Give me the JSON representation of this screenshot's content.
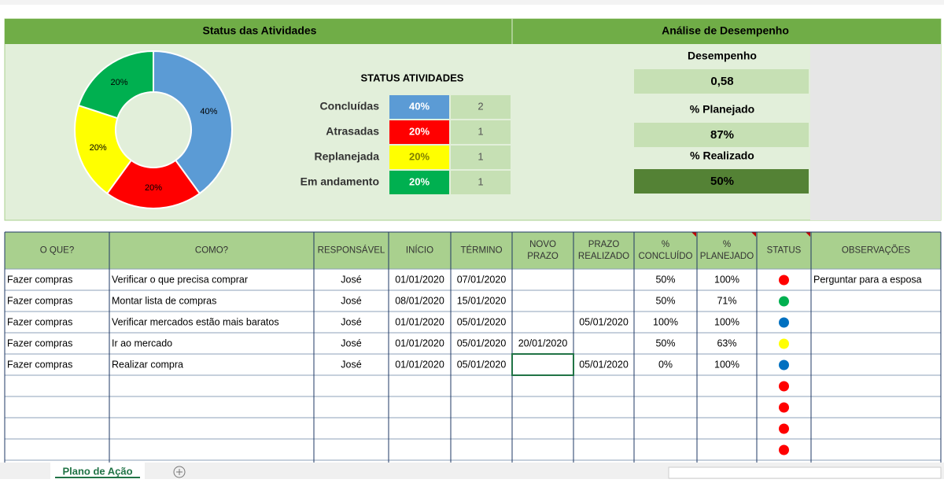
{
  "dashboard": {
    "left_title": "Status das Atividades",
    "right_title": "Análise de Desempenho",
    "donut": {
      "values": [
        40,
        20,
        20,
        20
      ],
      "labels": [
        "40%",
        "20%",
        "20%",
        "20%"
      ],
      "colors": [
        "#5b9bd5",
        "#ff0000",
        "#ffff00",
        "#00b050"
      ]
    },
    "status_table": {
      "title": "STATUS ATIVIDADES",
      "rows": [
        {
          "label": "Concluídas",
          "percent": "40%",
          "count": "2",
          "color": "#5b9bd5",
          "text": "#ffffff"
        },
        {
          "label": "Atrasadas",
          "percent": "20%",
          "count": "1",
          "color": "#ff0000",
          "text": "#ffffff"
        },
        {
          "label": "Replanejada",
          "percent": "20%",
          "count": "1",
          "color": "#ffff00",
          "text": "#7f7f00"
        },
        {
          "label": "Em andamento",
          "percent": "20%",
          "count": "1",
          "color": "#00b050",
          "text": "#ffffff"
        }
      ]
    },
    "performance": [
      {
        "label": "Desempenho",
        "value": "0,58",
        "color": "#c6e0b4"
      },
      {
        "label": "% Planejado",
        "value": "87%",
        "color": "#c6e0b4"
      },
      {
        "label": "% Realizado",
        "value": "50%",
        "color": "#548235"
      }
    ]
  },
  "table": {
    "header": [
      [
        "O QUE?"
      ],
      [
        "COMO?"
      ],
      [
        "RESPONSÁVEL"
      ],
      [
        "INÍCIO"
      ],
      [
        "TÉRMINO"
      ],
      [
        "NOVO",
        "PRAZO"
      ],
      [
        "PRAZO",
        "REALIZADO"
      ],
      [
        "%",
        "CONCLUÍDO"
      ],
      [
        "%",
        "PLANEJADO"
      ],
      [
        "STATUS"
      ],
      [
        "OBSERVAÇÕES"
      ]
    ],
    "rows": [
      [
        "Fazer compras",
        "Verificar o que precisa comprar",
        "José",
        "01/01/2020",
        "07/01/2020",
        null,
        null,
        "50%",
        "100%",
        null,
        "Perguntar para a esposa"
      ],
      [
        "Fazer compras",
        "Montar lista de compras",
        "José",
        "08/01/2020",
        "15/01/2020",
        null,
        null,
        "50%",
        "71%",
        null,
        null
      ],
      [
        "Fazer compras",
        "Verificar mercados estão mais baratos",
        "José",
        "01/01/2020",
        "05/01/2020",
        null,
        "05/01/2020",
        "100%",
        "100%",
        null,
        null
      ],
      [
        "Fazer compras",
        "Ir ao mercado",
        "José",
        "01/01/2020",
        "05/01/2020",
        "20/01/2020",
        null,
        "50%",
        "63%",
        null,
        null
      ],
      [
        "Fazer compras",
        "Realizar compra",
        "José",
        "01/01/2020",
        "05/01/2020",
        null,
        "05/01/2020",
        "0%",
        "100%",
        null,
        null
      ]
    ],
    "status": [
      "#ff0000",
      "#00b050",
      "#0070c0",
      "#ffff00",
      "#0070c0",
      "#ff0000",
      "#ff0000",
      "#ff0000",
      "#ff0000"
    ]
  },
  "tabs": {
    "active": "Plano de Ação"
  }
}
